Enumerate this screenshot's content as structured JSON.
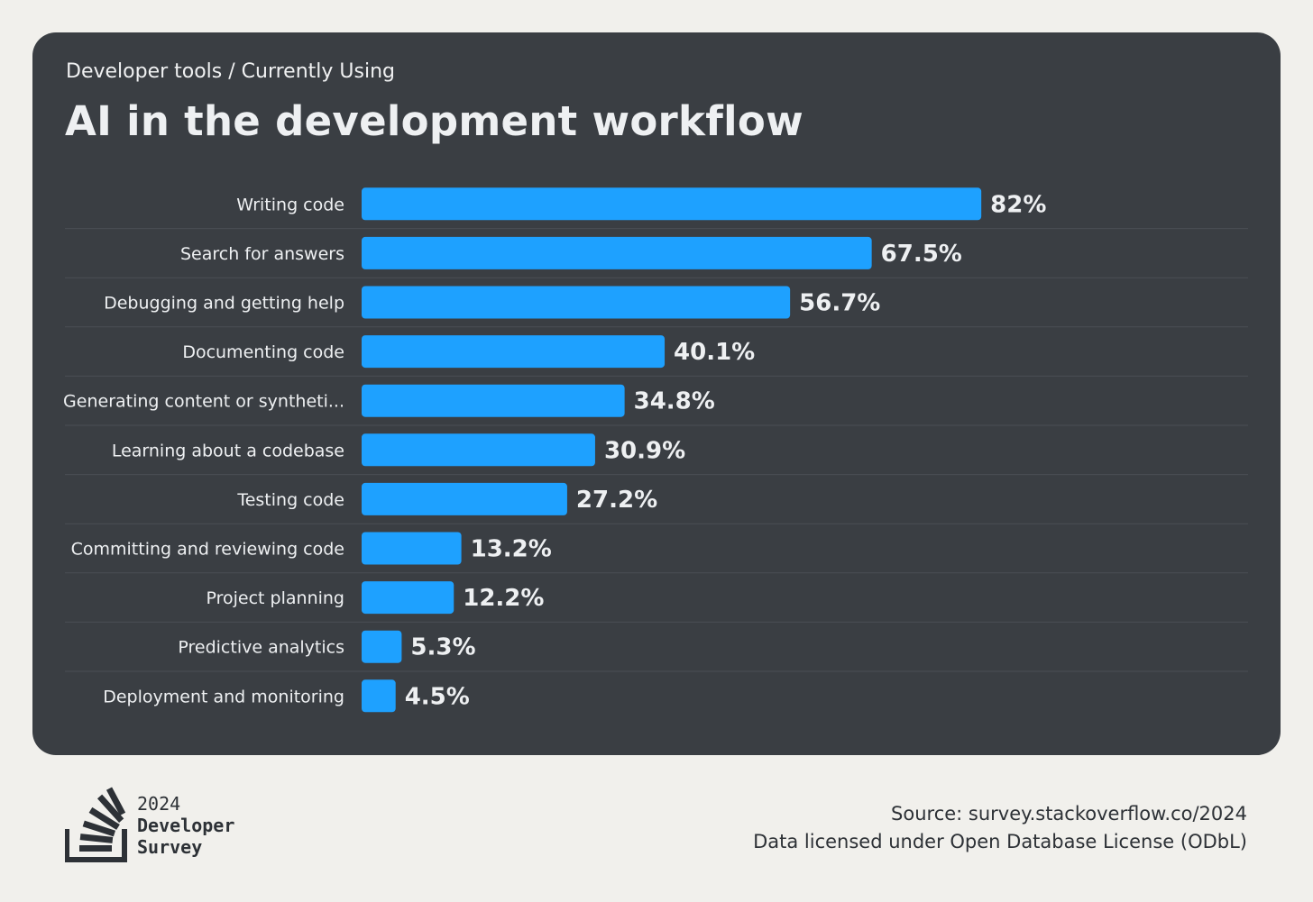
{
  "header": {
    "breadcrumb": "Developer tools / Currently Using",
    "title": "AI in the development workflow"
  },
  "chart_data": {
    "type": "bar",
    "orientation": "horizontal",
    "categories": [
      "Writing code",
      "Search for answers",
      "Debugging and getting help",
      "Documenting code",
      "Generating content or syntheti...",
      "Learning about a codebase",
      "Testing code",
      "Committing and reviewing code",
      "Project planning",
      "Predictive analytics",
      "Deployment and monitoring"
    ],
    "values": [
      82,
      67.5,
      56.7,
      40.1,
      34.8,
      30.9,
      27.2,
      13.2,
      12.2,
      5.3,
      4.5
    ],
    "value_labels": [
      "82%",
      "67.5%",
      "56.7%",
      "40.1%",
      "34.8%",
      "30.9%",
      "27.2%",
      "13.2%",
      "12.2%",
      "5.3%",
      "4.5%"
    ],
    "bar_color": "#1ea1ff",
    "xlim": [
      0,
      100
    ],
    "grid": false,
    "legend": "none"
  },
  "footer": {
    "logo_year": "2024",
    "logo_line1": "Developer",
    "logo_line2": "Survey",
    "source": "Source: survey.stackoverflow.co/2024",
    "license": "Data licensed under Open Database License (ODbL)"
  },
  "colors": {
    "page_background": "#f1f0ec",
    "card_background": "#3a3e43",
    "text_light": "#eef0f2",
    "text_dark": "#2d3136",
    "divider": "#4a4f55"
  }
}
